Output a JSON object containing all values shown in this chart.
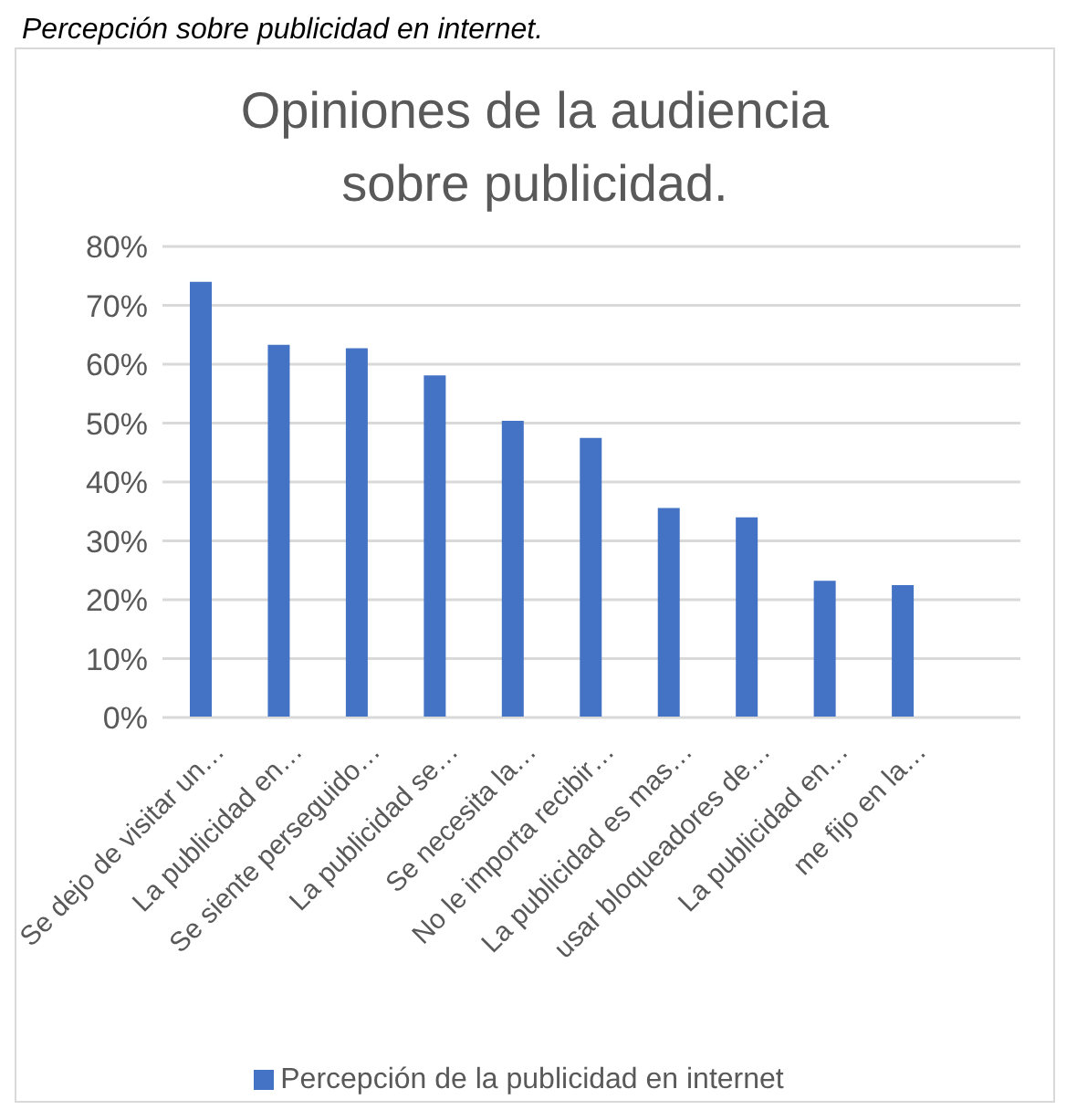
{
  "chart_data": {
    "type": "bar",
    "title": "Opiniones de la audiencia sobre publicidad.",
    "annotations": [
      "Percepción sobre publicidad en internet."
    ],
    "categories": [
      "Se dejo de visitar un…",
      "La publicidad en…",
      "Se siente perseguido…",
      "La publicidad se…",
      "Se necesita la…",
      "No le importa recibir…",
      "La publicidad es mas…",
      "usar bloqueadores de…",
      "La publicidad en…",
      "me fijo en la…",
      null
    ],
    "series": [
      {
        "name": "Percepción de la publicidad en internet",
        "color": "#4472c4",
        "values": [
          0.74,
          0.633,
          0.627,
          0.581,
          0.504,
          0.475,
          0.356,
          0.34,
          0.232,
          0.225,
          null
        ]
      }
    ],
    "ylim": [
      0,
      0.8
    ],
    "yticks": [
      {
        "value": 0,
        "label": "0%"
      },
      {
        "value": 0.1,
        "label": "10%"
      },
      {
        "value": 0.2,
        "label": "20%"
      },
      {
        "value": 0.3,
        "label": "30%"
      },
      {
        "value": 0.4,
        "label": "40%"
      },
      {
        "value": 0.5,
        "label": "50%"
      },
      {
        "value": 0.6,
        "label": "60%"
      },
      {
        "value": 0.7,
        "label": "70%"
      },
      {
        "value": 0.8,
        "label": "80%"
      }
    ],
    "grid": "y",
    "legend": "bottom"
  }
}
